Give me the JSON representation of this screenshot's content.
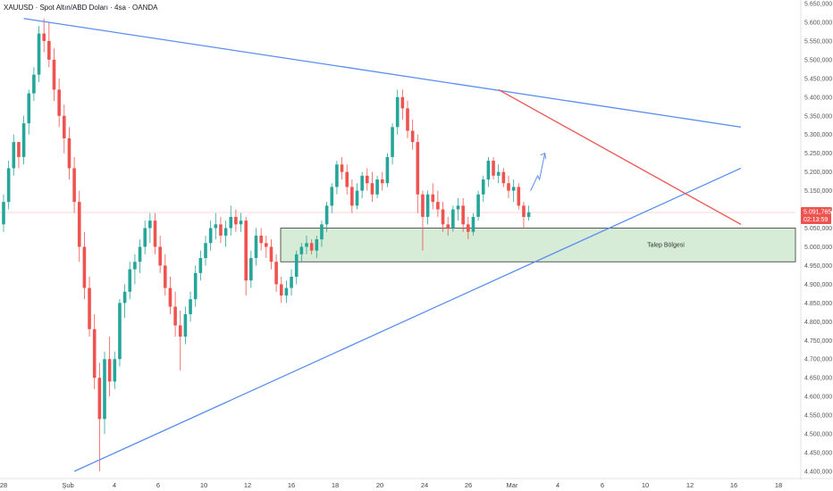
{
  "title": "XAUUSD · Spot Altın/ABD Doları · 4sa · OANDA",
  "colors": {
    "up": "#26a69a",
    "down": "#ef5350",
    "trendline": "#5b8def",
    "redline": "#ef5350",
    "zone_fill": "#c8e6c9",
    "zone_border": "#333333",
    "price_badge": "#ef5350"
  },
  "chart_data": {
    "type": "candlestick",
    "symbol": "XAUUSD",
    "timeframe": "4sa",
    "ylim": [
      4400,
      5650
    ],
    "y_ticks": [
      "5.650,000",
      "5.600,000",
      "5.550,000",
      "5.500,000",
      "5.450,000",
      "5.400,000",
      "5.350,000",
      "5.300,000",
      "5.250,000",
      "5.200,000",
      "5.150,000",
      "5.100,000",
      "5.050,000",
      "5.000,000",
      "4.950,000",
      "4.900,000",
      "4.850,000",
      "4.800,000",
      "4.750,000",
      "4.700,000",
      "4.650,000",
      "4.600,000",
      "4.550,000",
      "4.500,000",
      "4.450,000",
      "4.400,000"
    ],
    "x_ticks": [
      "28",
      "Şub",
      "4",
      "6",
      "10",
      "12",
      "16",
      "18",
      "20",
      "24",
      "26",
      "Mar",
      "4",
      "6",
      "10",
      "12",
      "16",
      "18"
    ],
    "current_price": "5.091,765",
    "countdown": "02:13:59",
    "last_value": 5091.765,
    "demand_zone": {
      "label": "Talep Bölgesi",
      "low": 4960,
      "high": 5050
    },
    "candles": [
      {
        "o": 5060,
        "h": 5140,
        "l": 5040,
        "c": 5120
      },
      {
        "o": 5120,
        "h": 5230,
        "l": 5100,
        "c": 5210
      },
      {
        "o": 5210,
        "h": 5300,
        "l": 5190,
        "c": 5280
      },
      {
        "o": 5280,
        "h": 5280,
        "l": 5210,
        "c": 5240
      },
      {
        "o": 5240,
        "h": 5350,
        "l": 5220,
        "c": 5330
      },
      {
        "o": 5330,
        "h": 5420,
        "l": 5300,
        "c": 5410
      },
      {
        "o": 5410,
        "h": 5480,
        "l": 5390,
        "c": 5460
      },
      {
        "o": 5460,
        "h": 5590,
        "l": 5440,
        "c": 5570
      },
      {
        "o": 5570,
        "h": 5610,
        "l": 5520,
        "c": 5550
      },
      {
        "o": 5550,
        "h": 5600,
        "l": 5480,
        "c": 5500
      },
      {
        "o": 5500,
        "h": 5530,
        "l": 5390,
        "c": 5420
      },
      {
        "o": 5420,
        "h": 5450,
        "l": 5320,
        "c": 5350
      },
      {
        "o": 5350,
        "h": 5380,
        "l": 5250,
        "c": 5290
      },
      {
        "o": 5290,
        "h": 5320,
        "l": 5180,
        "c": 5210
      },
      {
        "o": 5210,
        "h": 5240,
        "l": 5090,
        "c": 5120
      },
      {
        "o": 5120,
        "h": 5150,
        "l": 4960,
        "c": 5000
      },
      {
        "o": 5000,
        "h": 5040,
        "l": 4860,
        "c": 4890
      },
      {
        "o": 4890,
        "h": 4920,
        "l": 4760,
        "c": 4780
      },
      {
        "o": 4780,
        "h": 4820,
        "l": 4620,
        "c": 4650
      },
      {
        "o": 4650,
        "h": 4690,
        "l": 4400,
        "c": 4540
      },
      {
        "o": 4540,
        "h": 4720,
        "l": 4500,
        "c": 4700
      },
      {
        "o": 4700,
        "h": 4760,
        "l": 4600,
        "c": 4640
      },
      {
        "o": 4640,
        "h": 4720,
        "l": 4620,
        "c": 4700
      },
      {
        "o": 4700,
        "h": 4860,
        "l": 4680,
        "c": 4850
      },
      {
        "o": 4850,
        "h": 4900,
        "l": 4810,
        "c": 4880
      },
      {
        "o": 4880,
        "h": 4960,
        "l": 4860,
        "c": 4940
      },
      {
        "o": 4940,
        "h": 4980,
        "l": 4900,
        "c": 4960
      },
      {
        "o": 4960,
        "h": 5020,
        "l": 4930,
        "c": 5000
      },
      {
        "o": 5000,
        "h": 5070,
        "l": 4980,
        "c": 5050
      },
      {
        "o": 5050,
        "h": 5090,
        "l": 5010,
        "c": 5070
      },
      {
        "o": 5070,
        "h": 5090,
        "l": 4980,
        "c": 5000
      },
      {
        "o": 5000,
        "h": 5030,
        "l": 4930,
        "c": 4950
      },
      {
        "o": 4950,
        "h": 4980,
        "l": 4870,
        "c": 4890
      },
      {
        "o": 4890,
        "h": 4920,
        "l": 4820,
        "c": 4840
      },
      {
        "o": 4840,
        "h": 4880,
        "l": 4760,
        "c": 4790
      },
      {
        "o": 4790,
        "h": 4830,
        "l": 4670,
        "c": 4760
      },
      {
        "o": 4760,
        "h": 4840,
        "l": 4740,
        "c": 4820
      },
      {
        "o": 4820,
        "h": 4880,
        "l": 4800,
        "c": 4860
      },
      {
        "o": 4860,
        "h": 4950,
        "l": 4840,
        "c": 4930
      },
      {
        "o": 4930,
        "h": 4990,
        "l": 4910,
        "c": 4970
      },
      {
        "o": 4970,
        "h": 5030,
        "l": 4950,
        "c": 5010
      },
      {
        "o": 5010,
        "h": 5070,
        "l": 4990,
        "c": 5050
      },
      {
        "o": 5050,
        "h": 5090,
        "l": 5020,
        "c": 5060
      },
      {
        "o": 5060,
        "h": 5080,
        "l": 5010,
        "c": 5030
      },
      {
        "o": 5030,
        "h": 5070,
        "l": 5000,
        "c": 5050
      },
      {
        "o": 5050,
        "h": 5110,
        "l": 5030,
        "c": 5080
      },
      {
        "o": 5080,
        "h": 5100,
        "l": 5040,
        "c": 5060
      },
      {
        "o": 5060,
        "h": 5090,
        "l": 5040,
        "c": 5070
      },
      {
        "o": 5070,
        "h": 5080,
        "l": 4870,
        "c": 4910
      },
      {
        "o": 4910,
        "h": 4990,
        "l": 4890,
        "c": 4970
      },
      {
        "o": 4970,
        "h": 5050,
        "l": 4950,
        "c": 5030
      },
      {
        "o": 5030,
        "h": 5050,
        "l": 4990,
        "c": 5010
      },
      {
        "o": 5010,
        "h": 5030,
        "l": 4970,
        "c": 5000
      },
      {
        "o": 5000,
        "h": 5020,
        "l": 4940,
        "c": 4960
      },
      {
        "o": 4960,
        "h": 4980,
        "l": 4880,
        "c": 4900
      },
      {
        "o": 4900,
        "h": 4920,
        "l": 4850,
        "c": 4870
      },
      {
        "o": 4870,
        "h": 4910,
        "l": 4850,
        "c": 4890
      },
      {
        "o": 4890,
        "h": 4940,
        "l": 4870,
        "c": 4920
      },
      {
        "o": 4920,
        "h": 4990,
        "l": 4900,
        "c": 4980
      },
      {
        "o": 4980,
        "h": 5010,
        "l": 4960,
        "c": 5000
      },
      {
        "o": 5000,
        "h": 5030,
        "l": 4980,
        "c": 5010
      },
      {
        "o": 5010,
        "h": 5020,
        "l": 4980,
        "c": 4990
      },
      {
        "o": 4990,
        "h": 5030,
        "l": 4970,
        "c": 5020
      },
      {
        "o": 5020,
        "h": 5070,
        "l": 5000,
        "c": 5060
      },
      {
        "o": 5060,
        "h": 5120,
        "l": 5040,
        "c": 5110
      },
      {
        "o": 5110,
        "h": 5170,
        "l": 5090,
        "c": 5160
      },
      {
        "o": 5160,
        "h": 5230,
        "l": 5140,
        "c": 5220
      },
      {
        "o": 5220,
        "h": 5240,
        "l": 5180,
        "c": 5200
      },
      {
        "o": 5200,
        "h": 5220,
        "l": 5140,
        "c": 5160
      },
      {
        "o": 5160,
        "h": 5180,
        "l": 5090,
        "c": 5110
      },
      {
        "o": 5110,
        "h": 5170,
        "l": 5100,
        "c": 5150
      },
      {
        "o": 5150,
        "h": 5200,
        "l": 5130,
        "c": 5190
      },
      {
        "o": 5190,
        "h": 5210,
        "l": 5150,
        "c": 5170
      },
      {
        "o": 5170,
        "h": 5200,
        "l": 5120,
        "c": 5140
      },
      {
        "o": 5140,
        "h": 5190,
        "l": 5130,
        "c": 5180
      },
      {
        "o": 5180,
        "h": 5200,
        "l": 5150,
        "c": 5170
      },
      {
        "o": 5170,
        "h": 5250,
        "l": 5160,
        "c": 5240
      },
      {
        "o": 5240,
        "h": 5330,
        "l": 5220,
        "c": 5320
      },
      {
        "o": 5320,
        "h": 5420,
        "l": 5300,
        "c": 5400
      },
      {
        "o": 5400,
        "h": 5420,
        "l": 5340,
        "c": 5370
      },
      {
        "o": 5370,
        "h": 5390,
        "l": 5290,
        "c": 5310
      },
      {
        "o": 5310,
        "h": 5340,
        "l": 5260,
        "c": 5280
      },
      {
        "o": 5280,
        "h": 5300,
        "l": 5090,
        "c": 5140
      },
      {
        "o": 5140,
        "h": 5150,
        "l": 4990,
        "c": 5080
      },
      {
        "o": 5080,
        "h": 5150,
        "l": 5060,
        "c": 5140
      },
      {
        "o": 5140,
        "h": 5170,
        "l": 5100,
        "c": 5120
      },
      {
        "o": 5120,
        "h": 5150,
        "l": 5080,
        "c": 5100
      },
      {
        "o": 5100,
        "h": 5120,
        "l": 5040,
        "c": 5060
      },
      {
        "o": 5060,
        "h": 5080,
        "l": 5030,
        "c": 5050
      },
      {
        "o": 5050,
        "h": 5110,
        "l": 5040,
        "c": 5100
      },
      {
        "o": 5100,
        "h": 5130,
        "l": 5070,
        "c": 5110
      },
      {
        "o": 5110,
        "h": 5130,
        "l": 5040,
        "c": 5060
      },
      {
        "o": 5060,
        "h": 5080,
        "l": 5020,
        "c": 5040
      },
      {
        "o": 5040,
        "h": 5090,
        "l": 5030,
        "c": 5080
      },
      {
        "o": 5080,
        "h": 5150,
        "l": 5070,
        "c": 5140
      },
      {
        "o": 5140,
        "h": 5190,
        "l": 5120,
        "c": 5180
      },
      {
        "o": 5180,
        "h": 5240,
        "l": 5160,
        "c": 5230
      },
      {
        "o": 5230,
        "h": 5240,
        "l": 5180,
        "c": 5190
      },
      {
        "o": 5190,
        "h": 5220,
        "l": 5170,
        "c": 5200
      },
      {
        "o": 5200,
        "h": 5210,
        "l": 5160,
        "c": 5170
      },
      {
        "o": 5170,
        "h": 5190,
        "l": 5130,
        "c": 5150
      },
      {
        "o": 5150,
        "h": 5180,
        "l": 5120,
        "c": 5160
      },
      {
        "o": 5160,
        "h": 5170,
        "l": 5100,
        "c": 5110
      },
      {
        "o": 5110,
        "h": 5120,
        "l": 5050,
        "c": 5080
      },
      {
        "o": 5080,
        "h": 5110,
        "l": 5070,
        "c": 5092
      }
    ],
    "lines": [
      {
        "name": "upper-trendline",
        "color": "trendline",
        "from": {
          "i": 4,
          "v": 5610
        },
        "to": {
          "i": 146,
          "v": 5320
        }
      },
      {
        "name": "lower-trendline",
        "color": "trendline",
        "from": {
          "i": 14,
          "v": 4400
        },
        "to": {
          "i": 146,
          "v": 5210
        }
      },
      {
        "name": "red-resistance",
        "color": "redline",
        "from": {
          "i": 98,
          "v": 5420
        },
        "to": {
          "i": 146,
          "v": 5060
        }
      }
    ]
  }
}
